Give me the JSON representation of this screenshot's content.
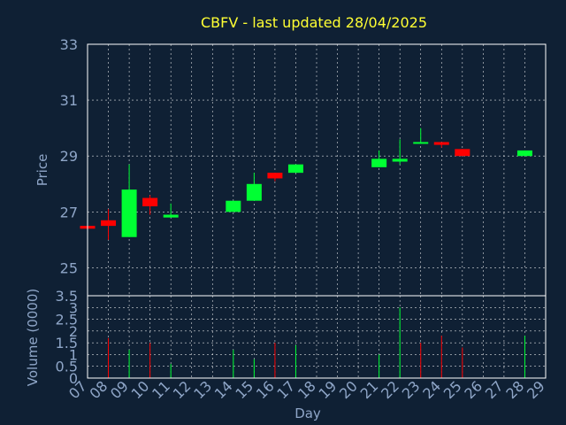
{
  "title": "CBFV - last updated 28/04/2025",
  "colors": {
    "background": "#0f2034",
    "up": "#00ff33",
    "down": "#ff0000",
    "title": "#ffff33",
    "label": "#8fa6c8",
    "grid": "#ffffff"
  },
  "chart_data": [
    {
      "type": "candlestick",
      "ylabel": "Price",
      "ylim": [
        24,
        33
      ],
      "yticks": [
        "25",
        "27",
        "29",
        "31",
        "33"
      ],
      "grid": true,
      "candles": [
        {
          "day": "07",
          "open": 26.5,
          "high": 26.5,
          "low": 26.4,
          "close": 26.4
        },
        {
          "day": "08",
          "open": 26.7,
          "high": 27.1,
          "low": 26.0,
          "close": 26.5
        },
        {
          "day": "09",
          "open": 26.1,
          "high": 28.7,
          "low": 26.1,
          "close": 27.8
        },
        {
          "day": "10",
          "open": 27.5,
          "high": 27.6,
          "low": 26.9,
          "close": 27.2
        },
        {
          "day": "11",
          "open": 26.8,
          "high": 27.3,
          "low": 26.8,
          "close": 26.9
        },
        {
          "day": "14",
          "open": 27.0,
          "high": 27.4,
          "low": 27.0,
          "close": 27.4
        },
        {
          "day": "15",
          "open": 27.4,
          "high": 28.4,
          "low": 27.4,
          "close": 28.0
        },
        {
          "day": "16",
          "open": 28.4,
          "high": 28.4,
          "low": 28.1,
          "close": 28.2
        },
        {
          "day": "17",
          "open": 28.4,
          "high": 28.7,
          "low": 28.4,
          "close": 28.7
        },
        {
          "day": "21",
          "open": 28.6,
          "high": 29.2,
          "low": 28.6,
          "close": 28.9
        },
        {
          "day": "22",
          "open": 28.8,
          "high": 29.6,
          "low": 28.7,
          "close": 28.9
        },
        {
          "day": "23",
          "open": 29.5,
          "high": 30.0,
          "low": 29.5,
          "close": 29.5
        },
        {
          "day": "24",
          "open": 29.5,
          "high": 29.5,
          "low": 29.3,
          "close": 29.4
        },
        {
          "day": "25",
          "open": 29.25,
          "high": 29.25,
          "low": 29.0,
          "close": 29.0
        },
        {
          "day": "28",
          "open": 29.0,
          "high": 29.2,
          "low": 29.0,
          "close": 29.2
        }
      ]
    },
    {
      "type": "bar",
      "xlabel": "Day",
      "ylabel": "Volume (0000)",
      "ylim": [
        0,
        3.5
      ],
      "yticks": [
        "0",
        "0.5",
        "1",
        "1.5",
        "2",
        "2.5",
        "3",
        "3.5"
      ],
      "categories": [
        "07",
        "08",
        "09",
        "10",
        "11",
        "12",
        "13",
        "14",
        "15",
        "16",
        "17",
        "18",
        "19",
        "20",
        "21",
        "22",
        "23",
        "24",
        "25",
        "26",
        "27",
        "28",
        "29"
      ],
      "values": [
        0,
        1.7,
        1.2,
        1.5,
        0.6,
        0,
        0,
        1.2,
        0.8,
        1.5,
        1.4,
        0,
        0,
        0,
        1.0,
        3.0,
        1.5,
        1.8,
        1.3,
        0,
        0,
        1.8,
        0
      ],
      "bar_colors": [
        "none",
        "down",
        "up",
        "down",
        "up",
        "none",
        "none",
        "up",
        "up",
        "down",
        "up",
        "none",
        "none",
        "none",
        "up",
        "up",
        "down",
        "down",
        "down",
        "none",
        "none",
        "up",
        "none"
      ]
    }
  ]
}
